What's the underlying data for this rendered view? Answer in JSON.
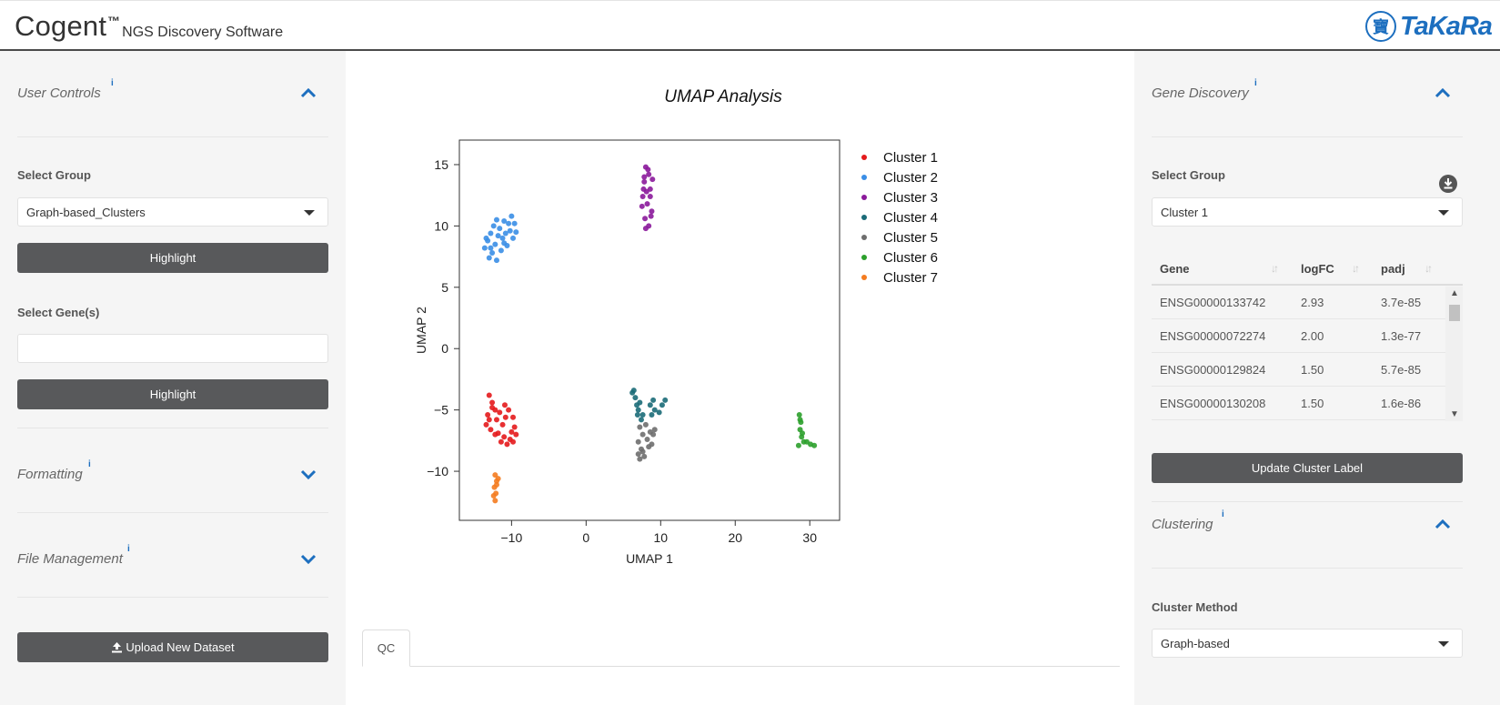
{
  "header": {
    "brand": "Cogent",
    "tm": "™",
    "subtitle": "NGS Discovery Software",
    "logo_text": "TaKaRa",
    "logo_seal": "寶"
  },
  "left": {
    "user_controls": {
      "title": "User Controls",
      "info": "i"
    },
    "select_group_label": "Select Group",
    "select_group_value": "Graph-based_Clusters",
    "highlight_label": "Highlight",
    "select_genes_label": "Select Gene(s)",
    "select_genes_placeholder": "",
    "highlight2_label": "Highlight",
    "formatting": {
      "title": "Formatting",
      "info": "i"
    },
    "file_management": {
      "title": "File Management",
      "info": "i"
    },
    "upload_label": "Upload New Dataset"
  },
  "main": {
    "tab_label": "QC"
  },
  "right": {
    "gene_discovery": {
      "title": "Gene Discovery",
      "info": "i"
    },
    "select_group_label": "Select Group",
    "select_group_value": "Cluster 1",
    "table": {
      "headers": [
        "Gene",
        "logFC",
        "padj"
      ],
      "rows": [
        [
          "ENSG00000133742",
          "2.93",
          "3.7e-85"
        ],
        [
          "ENSG00000072274",
          "2.00",
          "1.3e-77"
        ],
        [
          "ENSG00000129824",
          "1.50",
          "5.7e-85"
        ],
        [
          "ENSG00000130208",
          "1.50",
          "1.6e-86"
        ]
      ]
    },
    "update_label": "Update Cluster Label",
    "clustering": {
      "title": "Clustering",
      "info": "i"
    },
    "cluster_method_label": "Cluster Method",
    "cluster_method_value": "Graph-based"
  },
  "colors": {
    "accent": "#1d6fbf",
    "button": "#58595b"
  },
  "chart_data": {
    "type": "scatter",
    "title": "UMAP Analysis",
    "xlabel": "UMAP 1",
    "ylabel": "UMAP 2",
    "xlim": [
      -17,
      34
    ],
    "ylim": [
      -14,
      17
    ],
    "xticks": [
      -10,
      0,
      10,
      20,
      30
    ],
    "yticks": [
      -10,
      -5,
      0,
      5,
      10,
      15
    ],
    "xtick_labels": [
      "−10",
      "0",
      "10",
      "20",
      "30"
    ],
    "ytick_labels": [
      "−10",
      "−5",
      "0",
      "5",
      "10",
      "15"
    ],
    "legend_position": "right",
    "grid": false,
    "series": [
      {
        "name": "Cluster 1",
        "color": "#e41a1c",
        "points": [
          [
            -13.0,
            -3.8
          ],
          [
            -12.6,
            -4.4
          ],
          [
            -12.2,
            -5.0
          ],
          [
            -13.2,
            -5.4
          ],
          [
            -12.0,
            -5.8
          ],
          [
            -13.4,
            -6.2
          ],
          [
            -12.8,
            -6.6
          ],
          [
            -11.8,
            -6.9
          ],
          [
            -11.2,
            -6.2
          ],
          [
            -10.8,
            -5.6
          ],
          [
            -10.4,
            -5.0
          ],
          [
            -9.8,
            -5.6
          ],
          [
            -9.6,
            -6.4
          ],
          [
            -9.4,
            -7.0
          ],
          [
            -9.8,
            -7.6
          ],
          [
            -10.6,
            -7.8
          ],
          [
            -11.4,
            -7.6
          ],
          [
            -12.2,
            -7.0
          ],
          [
            -11.6,
            -5.2
          ],
          [
            -10.9,
            -4.6
          ],
          [
            -10.0,
            -6.8
          ],
          [
            -11.0,
            -7.2
          ],
          [
            -12.6,
            -4.8
          ],
          [
            -13.0,
            -5.8
          ],
          [
            -10.2,
            -7.4
          ]
        ]
      },
      {
        "name": "Cluster 2",
        "color": "#3a8ee6",
        "points": [
          [
            -13.6,
            8.2
          ],
          [
            -13.2,
            8.8
          ],
          [
            -12.8,
            9.4
          ],
          [
            -12.4,
            10.0
          ],
          [
            -12.0,
            10.5
          ],
          [
            -11.6,
            9.8
          ],
          [
            -12.2,
            8.5
          ],
          [
            -12.6,
            7.8
          ],
          [
            -13.0,
            7.4
          ],
          [
            -12.0,
            7.2
          ],
          [
            -11.4,
            8.0
          ],
          [
            -11.0,
            8.6
          ],
          [
            -10.8,
            9.4
          ],
          [
            -10.4,
            10.2
          ],
          [
            -10.0,
            10.8
          ],
          [
            -9.6,
            10.2
          ],
          [
            -9.4,
            9.5
          ],
          [
            -9.8,
            9.0
          ],
          [
            -10.6,
            8.4
          ],
          [
            -11.2,
            9.0
          ],
          [
            -12.8,
            8.2
          ],
          [
            -11.8,
            9.2
          ],
          [
            -10.2,
            9.6
          ],
          [
            -13.4,
            9.0
          ],
          [
            -11.0,
            10.4
          ]
        ]
      },
      {
        "name": "Cluster 3",
        "color": "#8b1a9b",
        "points": [
          [
            8.0,
            14.8
          ],
          [
            8.4,
            14.2
          ],
          [
            7.8,
            13.6
          ],
          [
            8.6,
            13.0
          ],
          [
            7.6,
            12.4
          ],
          [
            8.2,
            11.8
          ],
          [
            8.8,
            11.2
          ],
          [
            7.9,
            10.6
          ],
          [
            8.4,
            10.0
          ],
          [
            8.0,
            9.8
          ],
          [
            8.6,
            12.4
          ],
          [
            7.7,
            13.0
          ],
          [
            8.3,
            14.6
          ],
          [
            8.9,
            13.8
          ],
          [
            7.5,
            11.6
          ],
          [
            8.1,
            12.8
          ],
          [
            8.7,
            10.8
          ],
          [
            7.8,
            14.0
          ]
        ]
      },
      {
        "name": "Cluster 4",
        "color": "#1b6b78",
        "points": [
          [
            6.2,
            -3.6
          ],
          [
            6.6,
            -4.0
          ],
          [
            6.8,
            -4.6
          ],
          [
            7.0,
            -5.0
          ],
          [
            7.2,
            -4.4
          ],
          [
            6.9,
            -5.4
          ],
          [
            7.4,
            -5.8
          ],
          [
            8.6,
            -4.6
          ],
          [
            9.0,
            -4.2
          ],
          [
            9.2,
            -5.0
          ],
          [
            8.8,
            -5.4
          ],
          [
            10.2,
            -4.6
          ],
          [
            10.6,
            -4.2
          ],
          [
            9.8,
            -5.2
          ],
          [
            6.4,
            -3.4
          ],
          [
            7.6,
            -5.4
          ]
        ]
      },
      {
        "name": "Cluster 5",
        "color": "#6e6e6e",
        "points": [
          [
            7.2,
            -6.4
          ],
          [
            7.6,
            -7.0
          ],
          [
            7.0,
            -7.6
          ],
          [
            7.4,
            -8.2
          ],
          [
            7.8,
            -8.8
          ],
          [
            7.2,
            -9.0
          ],
          [
            8.2,
            -7.4
          ],
          [
            8.6,
            -6.8
          ],
          [
            8.0,
            -6.2
          ],
          [
            8.8,
            -7.8
          ],
          [
            9.2,
            -6.6
          ],
          [
            7.6,
            -8.4
          ],
          [
            8.4,
            -8.0
          ],
          [
            7.0,
            -8.6
          ],
          [
            9.0,
            -7.0
          ]
        ]
      },
      {
        "name": "Cluster 6",
        "color": "#2ca02c",
        "points": [
          [
            28.6,
            -5.4
          ],
          [
            28.8,
            -6.0
          ],
          [
            28.7,
            -6.6
          ],
          [
            28.9,
            -7.2
          ],
          [
            29.2,
            -7.6
          ],
          [
            28.5,
            -7.9
          ],
          [
            29.6,
            -7.6
          ],
          [
            30.1,
            -7.8
          ],
          [
            30.6,
            -7.9
          ],
          [
            28.7,
            -5.8
          ],
          [
            29.0,
            -6.9
          ]
        ]
      },
      {
        "name": "Cluster 7",
        "color": "#f47c20",
        "points": [
          [
            -12.2,
            -10.3
          ],
          [
            -12.0,
            -10.8
          ],
          [
            -12.3,
            -11.3
          ],
          [
            -12.1,
            -11.8
          ],
          [
            -12.2,
            -12.4
          ],
          [
            -11.8,
            -10.6
          ],
          [
            -12.4,
            -12.0
          ],
          [
            -12.0,
            -11.1
          ]
        ]
      }
    ]
  }
}
